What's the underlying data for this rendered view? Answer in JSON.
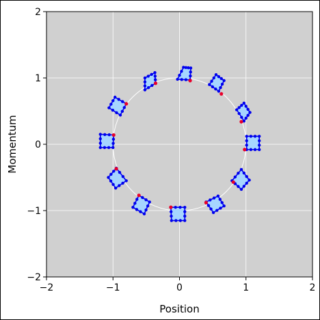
{
  "chart_data": {
    "type": "scatter",
    "xlabel": "Position",
    "ylabel": "Momentum",
    "xlim": [
      -2,
      2
    ],
    "ylim": [
      -2,
      2
    ],
    "xticks": [
      -2,
      -1,
      0,
      1,
      2
    ],
    "yticks": [
      -2,
      -1,
      0,
      1,
      2
    ],
    "xtick_labels": [
      "−2",
      "−1",
      "0",
      "1",
      "2"
    ],
    "ytick_labels": [
      "−2",
      "−1",
      "0",
      "1",
      "2"
    ],
    "grid": true,
    "background_color": "#d0d0d0",
    "circle": {
      "center": [
        0,
        0
      ],
      "radius": 1,
      "color": "#ffffff"
    },
    "patch_fill": "#a6d5ff",
    "patch_edge": "#0000ee",
    "marker_color": "#e8002a",
    "patches": [
      {
        "corners": [
          [
            0.06,
            1.16
          ],
          [
            0.17,
            1.15
          ],
          [
            0.16,
            0.97
          ],
          [
            -0.03,
            0.98
          ]
        ],
        "marker": [
          0.16,
          0.96
        ]
      },
      {
        "corners": [
          [
            0.55,
            1.05
          ],
          [
            0.67,
            0.96
          ],
          [
            0.59,
            0.8
          ],
          [
            0.45,
            0.9
          ]
        ],
        "marker": [
          0.63,
          0.76
        ]
      },
      {
        "corners": [
          [
            0.97,
            0.62
          ],
          [
            1.06,
            0.48
          ],
          [
            0.97,
            0.35
          ],
          [
            0.86,
            0.52
          ]
        ],
        "marker": [
          0.93,
          0.34
        ]
      },
      {
        "corners": [
          [
            1.01,
            0.12
          ],
          [
            1.2,
            0.12
          ],
          [
            1.2,
            -0.08
          ],
          [
            1.01,
            -0.08
          ]
        ],
        "marker": [
          0.98,
          -0.08
        ]
      },
      {
        "corners": [
          [
            0.93,
            -0.38
          ],
          [
            1.05,
            -0.54
          ],
          [
            0.93,
            -0.68
          ],
          [
            0.79,
            -0.55
          ]
        ],
        "marker": [
          0.81,
          -0.57
        ]
      },
      {
        "corners": [
          [
            0.58,
            -0.78
          ],
          [
            0.67,
            -0.93
          ],
          [
            0.51,
            -1.03
          ],
          [
            0.4,
            -0.87
          ]
        ],
        "marker": [
          0.4,
          -0.88
        ]
      },
      {
        "corners": [
          [
            -0.13,
            -0.95
          ],
          [
            0.08,
            -0.95
          ],
          [
            0.08,
            -1.15
          ],
          [
            -0.12,
            -1.15
          ]
        ],
        "marker": [
          -0.13,
          -0.95
        ]
      },
      {
        "corners": [
          [
            -0.61,
            -0.77
          ],
          [
            -0.45,
            -0.87
          ],
          [
            -0.53,
            -1.05
          ],
          [
            -0.7,
            -0.95
          ]
        ],
        "marker": [
          -0.61,
          -0.77
        ]
      },
      {
        "corners": [
          [
            -0.95,
            -0.36
          ],
          [
            -0.8,
            -0.55
          ],
          [
            -0.96,
            -0.66
          ],
          [
            -1.07,
            -0.5
          ]
        ],
        "marker": [
          -0.95,
          -0.37
        ]
      },
      {
        "corners": [
          [
            -1.19,
            0.15
          ],
          [
            -0.99,
            0.14
          ],
          [
            -1.0,
            -0.05
          ],
          [
            -1.19,
            -0.05
          ]
        ],
        "marker": [
          -0.99,
          0.14
        ]
      },
      {
        "corners": [
          [
            -0.97,
            0.71
          ],
          [
            -0.8,
            0.61
          ],
          [
            -0.89,
            0.44
          ],
          [
            -1.06,
            0.55
          ]
        ],
        "marker": [
          -0.8,
          0.61
        ]
      },
      {
        "corners": [
          [
            -0.52,
            1.0
          ],
          [
            -0.37,
            1.08
          ],
          [
            -0.36,
            0.92
          ],
          [
            -0.52,
            0.82
          ]
        ],
        "marker": [
          -0.36,
          0.92
        ]
      }
    ]
  }
}
